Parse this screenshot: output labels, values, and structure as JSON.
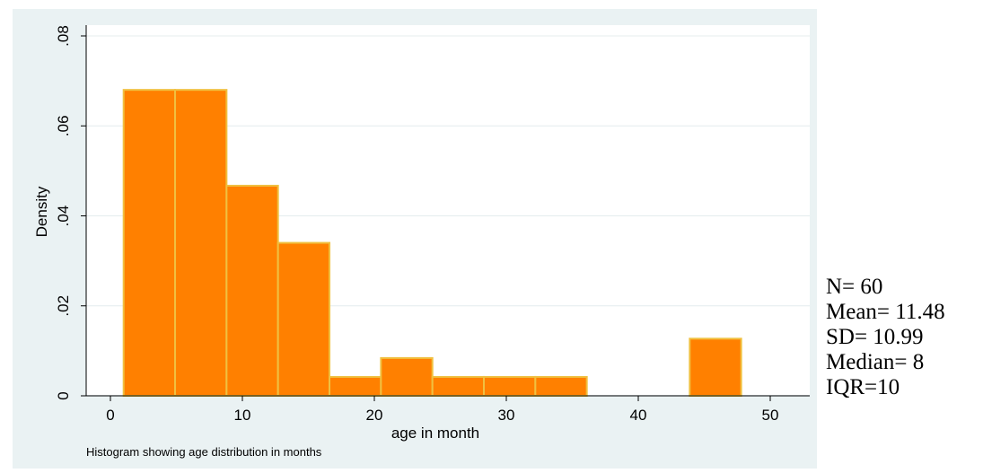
{
  "chart_data": {
    "type": "bar",
    "subtype": "histogram",
    "xlabel": "age in month",
    "ylabel": "Density",
    "note": "Histogram showing age distribution in months",
    "xlim": [
      0,
      50
    ],
    "ylim": [
      0,
      0.08
    ],
    "x_ticks": [
      0,
      10,
      20,
      30,
      40,
      50
    ],
    "x_tick_labels": [
      "0",
      "10",
      "20",
      "30",
      "40",
      "50"
    ],
    "y_ticks": [
      0,
      0.02,
      0.04,
      0.06,
      0.08
    ],
    "y_tick_labels": [
      "0",
      ".02",
      ".04",
      ".06",
      ".08"
    ],
    "grid": true,
    "bins": [
      {
        "x0": 1.0,
        "x1": 4.9,
        "value": 0.068
      },
      {
        "x0": 4.9,
        "x1": 8.8,
        "value": 0.068
      },
      {
        "x0": 8.8,
        "x1": 12.7,
        "value": 0.0467
      },
      {
        "x0": 12.7,
        "x1": 16.6,
        "value": 0.034
      },
      {
        "x0": 16.6,
        "x1": 20.5,
        "value": 0.0042
      },
      {
        "x0": 20.5,
        "x1": 24.4,
        "value": 0.0084
      },
      {
        "x0": 24.4,
        "x1": 28.3,
        "value": 0.0042
      },
      {
        "x0": 28.3,
        "x1": 32.2,
        "value": 0.0042
      },
      {
        "x0": 32.2,
        "x1": 36.1,
        "value": 0.0042
      },
      {
        "x0": 36.1,
        "x1": 40.0,
        "value": 0
      },
      {
        "x0": 40.0,
        "x1": 43.9,
        "value": 0
      },
      {
        "x0": 43.9,
        "x1": 47.8,
        "value": 0.0127
      }
    ]
  },
  "stats": {
    "n": "N= 60",
    "mean": "Mean= 11.48",
    "sd": "SD= 10.99",
    "median": "Median= 8",
    "iqr": "IQR=10"
  },
  "colors": {
    "bar_fill": "#ff8000",
    "bar_edge": "#f0c040",
    "panel_bg": "#eaf2f3",
    "plot_bg": "#ffffff",
    "grid": "#e4ecee"
  }
}
